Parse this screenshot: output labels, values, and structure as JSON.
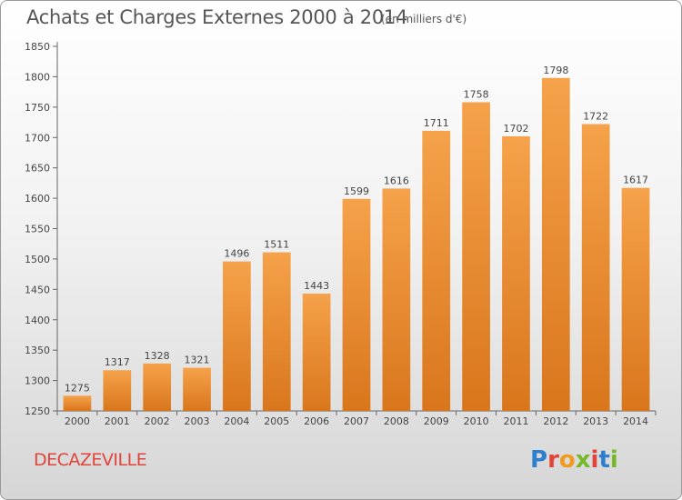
{
  "header": {
    "title": "Achats et Charges Externes 2000 à 2014",
    "subtitle": "(en milliers d'€)"
  },
  "footer": {
    "town": "DECAZEVILLE",
    "logo": "Proxiti"
  },
  "colors": {
    "bar_light": "#f5a24a",
    "bar_dark": "#d9761c",
    "town_text": "#e0443a"
  },
  "chart_data": {
    "type": "bar",
    "title": "Achats et Charges Externes 2000 à 2014",
    "subtitle": "(en milliers d'€)",
    "xlabel": "",
    "ylabel": "",
    "categories": [
      "2000",
      "2001",
      "2002",
      "2003",
      "2004",
      "2005",
      "2006",
      "2007",
      "2008",
      "2009",
      "2010",
      "2011",
      "2012",
      "2013",
      "2014"
    ],
    "values": [
      1275,
      1317,
      1328,
      1321,
      1496,
      1511,
      1443,
      1599,
      1616,
      1711,
      1758,
      1702,
      1798,
      1722,
      1617
    ],
    "ylim": [
      1250,
      1850
    ],
    "yticks": [
      1250,
      1300,
      1350,
      1400,
      1450,
      1500,
      1550,
      1600,
      1650,
      1700,
      1750,
      1800,
      1850
    ],
    "grid": false,
    "legend": "none"
  }
}
